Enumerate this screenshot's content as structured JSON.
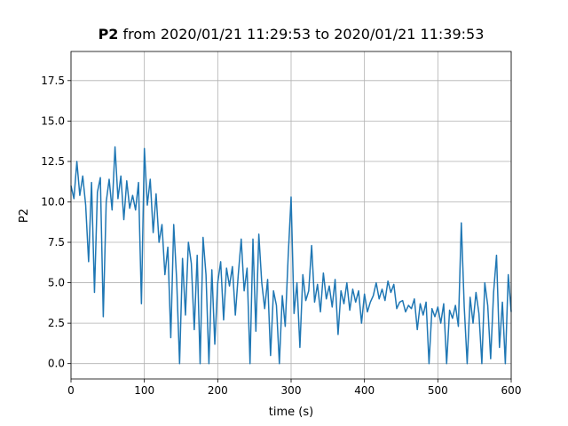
{
  "chart_data": {
    "type": "line",
    "title_bold": "P2",
    "title": "from 2020/01/21 11:29:53 to 2020/01/21 11:39:53",
    "x_label": "time (s)",
    "y_label": "P2",
    "xlim": [
      0,
      600
    ],
    "ylim": [
      -0.95,
      19.3
    ],
    "xticks": [
      0,
      100,
      200,
      300,
      400,
      500,
      600
    ],
    "yticks": [
      {
        "value": 0,
        "label": "0.0"
      },
      2.5,
      {
        "value": 5,
        "label": "5.0"
      },
      7.5,
      {
        "value": 10,
        "label": "10.0"
      },
      12.5,
      {
        "value": 15,
        "label": "15.0"
      },
      17.5
    ],
    "grid": true,
    "x": [
      0,
      4,
      8,
      12,
      16,
      20,
      24,
      28,
      32,
      36,
      40,
      44,
      48,
      52,
      56,
      60,
      64,
      68,
      72,
      76,
      80,
      84,
      88,
      92,
      96,
      100,
      104,
      108,
      112,
      116,
      120,
      124,
      128,
      132,
      136,
      140,
      144,
      148,
      152,
      156,
      160,
      164,
      168,
      172,
      176,
      180,
      184,
      188,
      192,
      196,
      200,
      204,
      208,
      212,
      216,
      220,
      224,
      228,
      232,
      236,
      240,
      244,
      248,
      252,
      256,
      260,
      264,
      268,
      272,
      276,
      280,
      284,
      288,
      292,
      296,
      300,
      304,
      308,
      312,
      316,
      320,
      324,
      328,
      332,
      336,
      340,
      344,
      348,
      352,
      356,
      360,
      364,
      368,
      372,
      376,
      380,
      384,
      388,
      392,
      396,
      400,
      404,
      408,
      412,
      416,
      420,
      424,
      428,
      432,
      436,
      440,
      444,
      448,
      452,
      456,
      460,
      464,
      468,
      472,
      476,
      480,
      484,
      488,
      492,
      496,
      500,
      504,
      508,
      512,
      516,
      520,
      524,
      528,
      532,
      536,
      540,
      544,
      548,
      552,
      556,
      560,
      564,
      568,
      572,
      576,
      580,
      584,
      588,
      592,
      596,
      600
    ],
    "series": [
      {
        "color": "#1f77b4",
        "values": [
          11.0,
          10.2,
          12.5,
          10.4,
          11.6,
          9.8,
          6.3,
          11.2,
          4.4,
          10.6,
          11.5,
          2.9,
          10.0,
          11.4,
          9.5,
          13.4,
          10.2,
          11.6,
          8.9,
          11.3,
          9.6,
          10.4,
          9.5,
          11.2,
          3.7,
          13.3,
          9.8,
          11.4,
          8.1,
          10.5,
          7.5,
          8.6,
          5.5,
          7.2,
          1.6,
          8.6,
          5.2,
          0.0,
          6.5,
          3.0,
          7.5,
          6.2,
          2.1,
          6.7,
          0.0,
          7.8,
          5.5,
          0.0,
          5.8,
          1.2,
          5.0,
          6.3,
          2.7,
          5.9,
          4.8,
          6.0,
          3.0,
          5.5,
          7.7,
          4.5,
          5.9,
          0.0,
          7.7,
          2.0,
          8.0,
          5.0,
          3.4,
          5.2,
          0.5,
          4.5,
          3.6,
          0.0,
          4.2,
          2.3,
          6.6,
          10.3,
          3.1,
          5.0,
          1.0,
          5.5,
          3.9,
          4.5,
          7.3,
          3.8,
          4.9,
          3.2,
          5.6,
          4.0,
          4.8,
          3.5,
          5.2,
          1.8,
          4.5,
          3.7,
          5.0,
          3.3,
          4.6,
          3.8,
          4.5,
          2.5,
          4.3,
          3.2,
          3.8,
          4.2,
          5.0,
          4.0,
          4.6,
          3.9,
          5.1,
          4.4,
          4.9,
          3.4,
          3.8,
          3.9,
          3.2,
          3.6,
          3.4,
          4.0,
          2.1,
          3.7,
          3.0,
          3.8,
          0.0,
          3.4,
          2.9,
          3.5,
          2.5,
          3.7,
          0.0,
          3.3,
          2.8,
          3.6,
          2.3,
          8.7,
          3.5,
          0.0,
          4.1,
          2.5,
          4.4,
          3.1,
          0.0,
          5.0,
          3.6,
          0.3,
          4.4,
          6.7,
          1.0,
          3.8,
          0.0,
          5.5,
          3.2
        ]
      }
    ]
  }
}
